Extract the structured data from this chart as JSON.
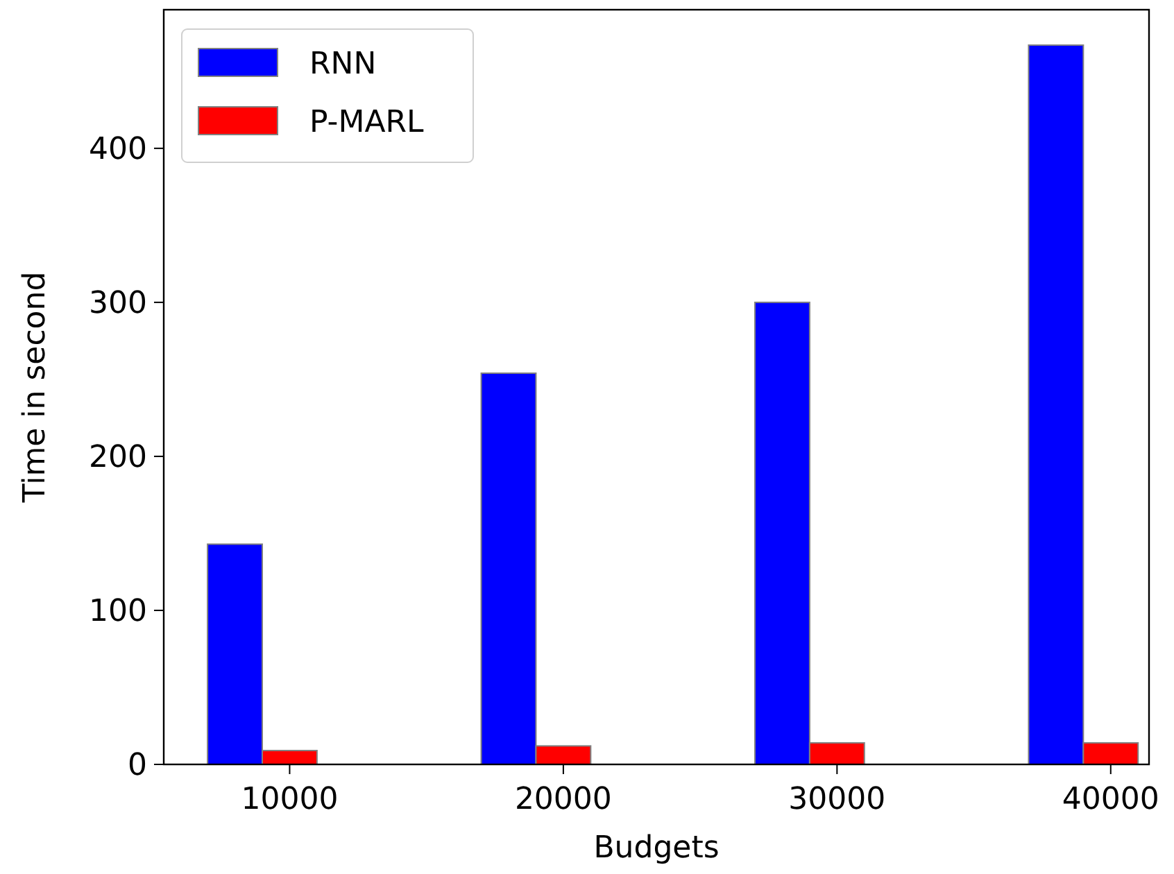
{
  "chart_data": {
    "type": "bar",
    "xlabel": "Budgets",
    "ylabel": "Time in second",
    "categories": [
      "10000",
      "20000",
      "30000",
      "40000"
    ],
    "series": [
      {
        "name": "RNN",
        "color": "#0000ff",
        "values": [
          143,
          254,
          300,
          467
        ]
      },
      {
        "name": "P-MARL",
        "color": "#ff0000",
        "values": [
          9,
          12,
          14,
          14
        ]
      }
    ],
    "ylim": [
      0,
      490
    ],
    "yticks": [
      0,
      100,
      200,
      300,
      400
    ],
    "legend": "top left"
  }
}
